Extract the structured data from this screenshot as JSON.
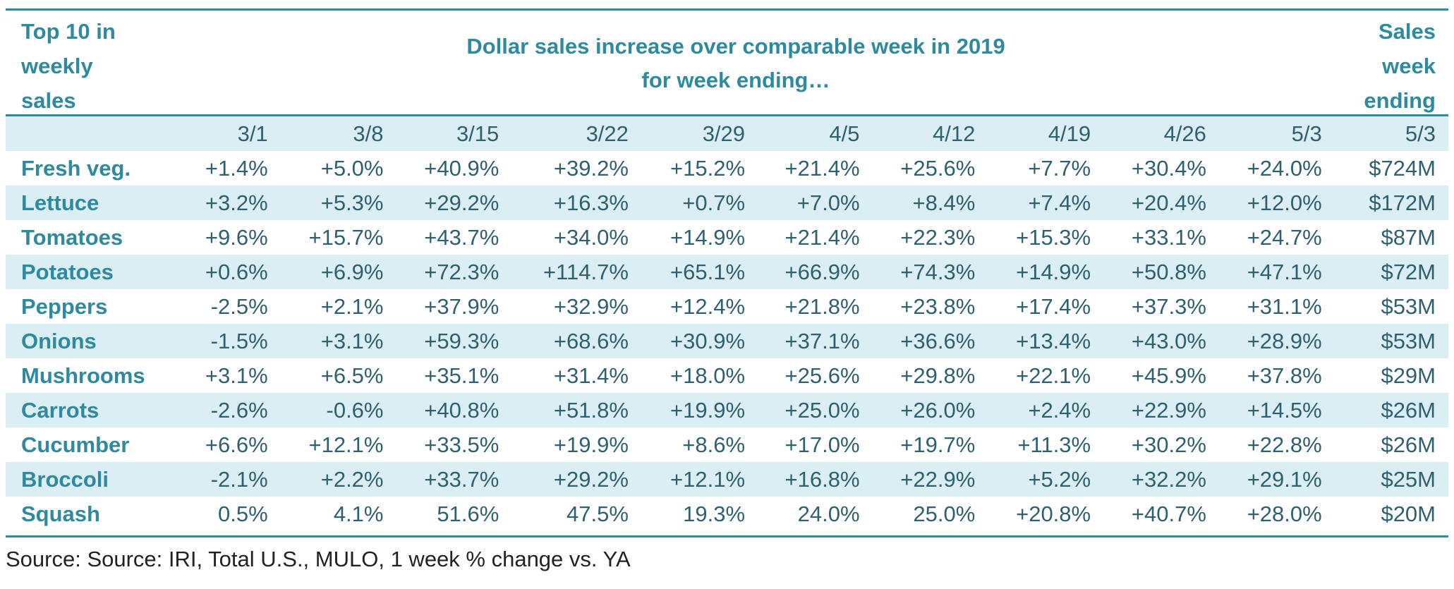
{
  "colors": {
    "accent": "#2E8A9E",
    "shade": "#DAEEF3",
    "value_text": "#2F6070"
  },
  "header": {
    "left_title": [
      "Top 10 in",
      "weekly",
      "sales"
    ],
    "center_title": [
      "Dollar sales increase over comparable week in 2019",
      "for week ending…"
    ],
    "right_title": [
      "Sales",
      "week",
      "ending"
    ]
  },
  "columns": [
    "3/1",
    "3/8",
    "3/15",
    "3/22",
    "3/29",
    "4/5",
    "4/12",
    "4/19",
    "4/26",
    "5/3",
    "5/3"
  ],
  "rows": [
    {
      "label": "Fresh veg.",
      "values": [
        "+1.4%",
        "+5.0%",
        "+40.9%",
        "+39.2%",
        "+15.2%",
        "+21.4%",
        "+25.6%",
        "+7.7%",
        "+30.4%",
        "+24.0%",
        "$724M"
      ]
    },
    {
      "label": "Lettuce",
      "values": [
        "+3.2%",
        "+5.3%",
        "+29.2%",
        "+16.3%",
        "+0.7%",
        "+7.0%",
        "+8.4%",
        "+7.4%",
        "+20.4%",
        "+12.0%",
        "$172M"
      ]
    },
    {
      "label": "Tomatoes",
      "values": [
        "+9.6%",
        "+15.7%",
        "+43.7%",
        "+34.0%",
        "+14.9%",
        "+21.4%",
        "+22.3%",
        "+15.3%",
        "+33.1%",
        "+24.7%",
        "$87M"
      ]
    },
    {
      "label": "Potatoes",
      "values": [
        "+0.6%",
        "+6.9%",
        "+72.3%",
        "+114.7%",
        "+65.1%",
        "+66.9%",
        "+74.3%",
        "+14.9%",
        "+50.8%",
        "+47.1%",
        "$72M"
      ]
    },
    {
      "label": "Peppers",
      "values": [
        "-2.5%",
        "+2.1%",
        "+37.9%",
        "+32.9%",
        "+12.4%",
        "+21.8%",
        "+23.8%",
        "+17.4%",
        "+37.3%",
        "+31.1%",
        "$53M"
      ]
    },
    {
      "label": "Onions",
      "values": [
        "-1.5%",
        "+3.1%",
        "+59.3%",
        "+68.6%",
        "+30.9%",
        "+37.1%",
        "+36.6%",
        "+13.4%",
        "+43.0%",
        "+28.9%",
        "$53M"
      ]
    },
    {
      "label": "Mushrooms",
      "values": [
        "+3.1%",
        "+6.5%",
        "+35.1%",
        "+31.4%",
        "+18.0%",
        "+25.6%",
        "+29.8%",
        "+22.1%",
        "+45.9%",
        "+37.8%",
        "$29M"
      ]
    },
    {
      "label": "Carrots",
      "values": [
        "-2.6%",
        "-0.6%",
        "+40.8%",
        "+51.8%",
        "+19.9%",
        "+25.0%",
        "+26.0%",
        "+2.4%",
        "+22.9%",
        "+14.5%",
        "$26M"
      ]
    },
    {
      "label": "Cucumber",
      "values": [
        "+6.6%",
        "+12.1%",
        "+33.5%",
        "+19.9%",
        "+8.6%",
        "+17.0%",
        "+19.7%",
        "+11.3%",
        "+30.2%",
        "+22.8%",
        "$26M"
      ]
    },
    {
      "label": "Broccoli",
      "values": [
        "-2.1%",
        "+2.2%",
        "+33.7%",
        "+29.2%",
        "+12.1%",
        "+16.8%",
        "+22.9%",
        "+5.2%",
        "+32.2%",
        "+29.1%",
        "$25M"
      ]
    },
    {
      "label": "Squash",
      "values": [
        "0.5%",
        "4.1%",
        "51.6%",
        "47.5%",
        "19.3%",
        "24.0%",
        "25.0%",
        "+20.8%",
        "+40.7%",
        "+28.0%",
        "$20M"
      ]
    }
  ],
  "source": "Source: Source: IRI, Total U.S., MULO, 1 week % change vs. YA",
  "chart_data": {
    "type": "table",
    "title": "Dollar sales increase over comparable week in 2019 for week ending…",
    "categories": [
      "3/1",
      "3/8",
      "3/15",
      "3/22",
      "3/29",
      "4/5",
      "4/12",
      "4/19",
      "4/26",
      "5/3"
    ],
    "series": [
      {
        "name": "Fresh veg.",
        "values": [
          1.4,
          5.0,
          40.9,
          39.2,
          15.2,
          21.4,
          25.6,
          7.7,
          30.4,
          24.0
        ]
      },
      {
        "name": "Lettuce",
        "values": [
          3.2,
          5.3,
          29.2,
          16.3,
          0.7,
          7.0,
          8.4,
          7.4,
          20.4,
          12.0
        ]
      },
      {
        "name": "Tomatoes",
        "values": [
          9.6,
          15.7,
          43.7,
          34.0,
          14.9,
          21.4,
          22.3,
          15.3,
          33.1,
          24.7
        ]
      },
      {
        "name": "Potatoes",
        "values": [
          0.6,
          6.9,
          72.3,
          114.7,
          65.1,
          66.9,
          74.3,
          14.9,
          50.8,
          47.1
        ]
      },
      {
        "name": "Peppers",
        "values": [
          -2.5,
          2.1,
          37.9,
          32.9,
          12.4,
          21.8,
          23.8,
          17.4,
          37.3,
          31.1
        ]
      },
      {
        "name": "Onions",
        "values": [
          -1.5,
          3.1,
          59.3,
          68.6,
          30.9,
          37.1,
          36.6,
          13.4,
          43.0,
          28.9
        ]
      },
      {
        "name": "Mushrooms",
        "values": [
          3.1,
          6.5,
          35.1,
          31.4,
          18.0,
          25.6,
          29.8,
          22.1,
          45.9,
          37.8
        ]
      },
      {
        "name": "Carrots",
        "values": [
          -2.6,
          -0.6,
          40.8,
          51.8,
          19.9,
          25.0,
          26.0,
          2.4,
          22.9,
          14.5
        ]
      },
      {
        "name": "Cucumber",
        "values": [
          6.6,
          12.1,
          33.5,
          19.9,
          8.6,
          17.0,
          19.7,
          11.3,
          30.2,
          22.8
        ]
      },
      {
        "name": "Broccoli",
        "values": [
          -2.1,
          2.2,
          33.7,
          29.2,
          12.1,
          16.8,
          22.9,
          5.2,
          32.2,
          29.1
        ]
      },
      {
        "name": "Squash",
        "values": [
          0.5,
          4.1,
          51.6,
          47.5,
          19.3,
          24.0,
          25.0,
          20.8,
          40.7,
          28.0
        ]
      }
    ],
    "sales_week_ending_5_3_musd": [
      724,
      172,
      87,
      72,
      53,
      53,
      29,
      26,
      26,
      25,
      20
    ]
  }
}
